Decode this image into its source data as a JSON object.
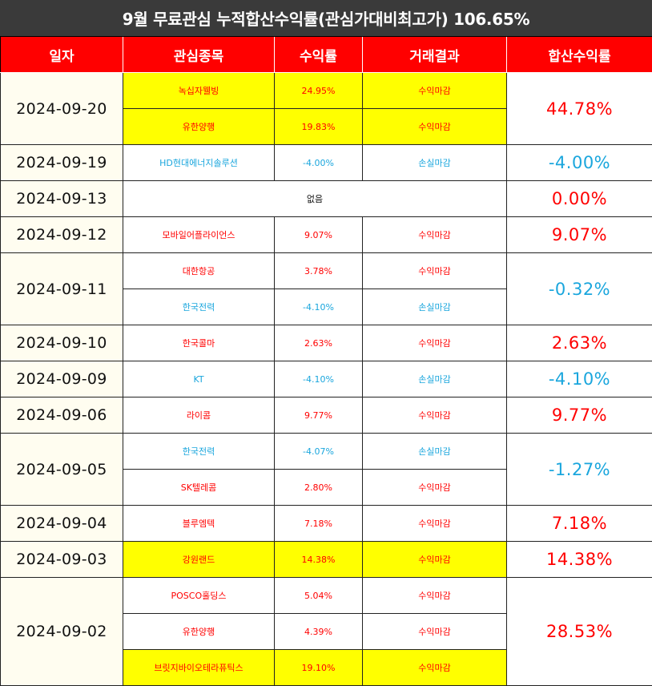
{
  "title": "9월 무료관심 누적합산수익률(관심가대비최고가) 106.65%",
  "headers": [
    "일자",
    "관심종목",
    "수익률",
    "거래결과",
    "합산수익률"
  ],
  "colors": {
    "header_bg": "#ff0000",
    "title_bg": "#3a3a3a",
    "gain": "#ff0000",
    "loss": "#1aa6dd",
    "highlight": "#ffff00"
  },
  "rows": [
    {
      "date": "2024-09-20",
      "total": "44.78%",
      "total_color": "red",
      "items": [
        {
          "stock": "녹십자웰빙",
          "ret": "24.95%",
          "result": "수익마감",
          "color": "red",
          "hl": true
        },
        {
          "stock": "유한양행",
          "ret": "19.83%",
          "result": "수익마감",
          "color": "red",
          "hl": true
        }
      ]
    },
    {
      "date": "2024-09-19",
      "total": "-4.00%",
      "total_color": "blue",
      "items": [
        {
          "stock": "HD현대에너지솔루션",
          "ret": "-4.00%",
          "result": "손실마감",
          "color": "blue",
          "hl": false
        }
      ]
    },
    {
      "date": "2024-09-13",
      "total": "0.00%",
      "total_color": "red",
      "none": "없음"
    },
    {
      "date": "2024-09-12",
      "total": "9.07%",
      "total_color": "red",
      "items": [
        {
          "stock": "모바일어플라이언스",
          "ret": "9.07%",
          "result": "수익마감",
          "color": "red",
          "hl": false
        }
      ]
    },
    {
      "date": "2024-09-11",
      "total": "-0.32%",
      "total_color": "blue",
      "items": [
        {
          "stock": "대한항공",
          "ret": "3.78%",
          "result": "수익마감",
          "color": "red",
          "hl": false
        },
        {
          "stock": "한국전력",
          "ret": "-4.10%",
          "result": "손실마감",
          "color": "blue",
          "hl": false
        }
      ]
    },
    {
      "date": "2024-09-10",
      "total": "2.63%",
      "total_color": "red",
      "items": [
        {
          "stock": "한국콜마",
          "ret": "2.63%",
          "result": "수익마감",
          "color": "red",
          "hl": false
        }
      ]
    },
    {
      "date": "2024-09-09",
      "total": "-4.10%",
      "total_color": "blue",
      "items": [
        {
          "stock": "KT",
          "ret": "-4.10%",
          "result": "손실마감",
          "color": "blue",
          "hl": false
        }
      ]
    },
    {
      "date": "2024-09-06",
      "total": "9.77%",
      "total_color": "red",
      "items": [
        {
          "stock": "라이콤",
          "ret": "9.77%",
          "result": "수익마감",
          "color": "red",
          "hl": false
        }
      ]
    },
    {
      "date": "2024-09-05",
      "total": "-1.27%",
      "total_color": "blue",
      "items": [
        {
          "stock": "한국전력",
          "ret": "-4.07%",
          "result": "손실마감",
          "color": "blue",
          "hl": false
        },
        {
          "stock": "SK텔레콤",
          "ret": "2.80%",
          "result": "수익마감",
          "color": "red",
          "hl": false
        }
      ]
    },
    {
      "date": "2024-09-04",
      "total": "7.18%",
      "total_color": "red",
      "items": [
        {
          "stock": "블루엠텍",
          "ret": "7.18%",
          "result": "수익마감",
          "color": "red",
          "hl": false
        }
      ]
    },
    {
      "date": "2024-09-03",
      "total": "14.38%",
      "total_color": "red",
      "items": [
        {
          "stock": "강원랜드",
          "ret": "14.38%",
          "result": "수익마감",
          "color": "red",
          "hl": true
        }
      ]
    },
    {
      "date": "2024-09-02",
      "total": "28.53%",
      "total_color": "red",
      "items": [
        {
          "stock": "POSCO홀딩스",
          "ret": "5.04%",
          "result": "수익마감",
          "color": "red",
          "hl": false
        },
        {
          "stock": "유한양행",
          "ret": "4.39%",
          "result": "수익마감",
          "color": "red",
          "hl": false
        },
        {
          "stock": "브릿지바이오테라퓨틱스",
          "ret": "19.10%",
          "result": "수익마감",
          "color": "red",
          "hl": true
        }
      ]
    }
  ]
}
